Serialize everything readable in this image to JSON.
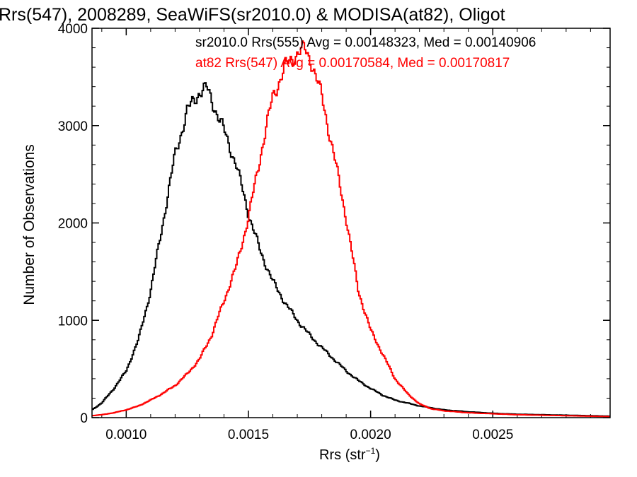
{
  "chart_data": {
    "type": "histogram-step",
    "title": "Rrs(547), 2008289, SeaWiFS(sr2010.0) & MODISA(at82), Oligot",
    "xlabel": "Rrs (str",
    "xlabel_sup": "−1",
    "xlabel_suffix": ")",
    "ylabel": "Number of Observations",
    "xlim": [
      0.00086,
      0.00298
    ],
    "ylim": [
      0,
      4000
    ],
    "x_ticks": [
      {
        "value": 0.001,
        "label": "0.0010"
      },
      {
        "value": 0.0015,
        "label": "0.0015"
      },
      {
        "value": 0.002,
        "label": "0.0020"
      },
      {
        "value": 0.0025,
        "label": "0.0025"
      }
    ],
    "y_ticks": [
      {
        "value": 0,
        "label": "0"
      },
      {
        "value": 1000,
        "label": "1000"
      },
      {
        "value": 2000,
        "label": "2000"
      },
      {
        "value": 3000,
        "label": "3000"
      },
      {
        "value": 4000,
        "label": "4000"
      }
    ],
    "annotations": [
      {
        "text": "sr2010.0 Rrs(555) Avg = 0.00148323, Med = 0.00140906",
        "color": "#000000"
      },
      {
        "text": "at82 Rrs(547) Avg = 0.00170584, Med = 0.00170817",
        "color": "#ff0000"
      }
    ],
    "series": [
      {
        "color": "#000000",
        "x": [
          0.00086,
          0.0009,
          0.00095,
          0.001,
          0.00105,
          0.0011,
          0.00115,
          0.0012,
          0.00125,
          0.0013,
          0.00133,
          0.00136,
          0.0014,
          0.00145,
          0.0015,
          0.00155,
          0.0016,
          0.00165,
          0.0017,
          0.00175,
          0.0018,
          0.00185,
          0.0019,
          0.00195,
          0.002,
          0.00205,
          0.0021,
          0.00215,
          0.0022,
          0.00225,
          0.0023,
          0.0024,
          0.0025,
          0.0026,
          0.0027,
          0.0028,
          0.0029,
          0.00298
        ],
        "y": [
          80,
          150,
          300,
          480,
          800,
          1300,
          2000,
          2700,
          3150,
          3350,
          3380,
          3200,
          2950,
          2600,
          2100,
          1700,
          1400,
          1180,
          1000,
          850,
          720,
          600,
          480,
          380,
          300,
          230,
          180,
          150,
          120,
          100,
          80,
          60,
          45,
          35,
          30,
          25,
          20,
          15
        ]
      },
      {
        "color": "#ff0000",
        "x": [
          0.00086,
          0.0009,
          0.00095,
          0.001,
          0.00105,
          0.0011,
          0.00115,
          0.0012,
          0.00125,
          0.0013,
          0.00135,
          0.0014,
          0.00145,
          0.0015,
          0.00155,
          0.0016,
          0.00165,
          0.0017,
          0.00173,
          0.00176,
          0.0018,
          0.00185,
          0.0019,
          0.00195,
          0.002,
          0.00205,
          0.0021,
          0.00215,
          0.0022,
          0.00225,
          0.0023,
          0.0024,
          0.0025,
          0.0026,
          0.0027,
          0.0028,
          0.0029,
          0.00298
        ],
        "y": [
          20,
          30,
          50,
          80,
          120,
          180,
          250,
          330,
          450,
          600,
          850,
          1200,
          1550,
          2050,
          2700,
          3300,
          3600,
          3750,
          3780,
          3650,
          3300,
          2700,
          2050,
          1300,
          900,
          650,
          400,
          250,
          140,
          90,
          70,
          50,
          40,
          30,
          25,
          20,
          15,
          10
        ]
      }
    ]
  }
}
